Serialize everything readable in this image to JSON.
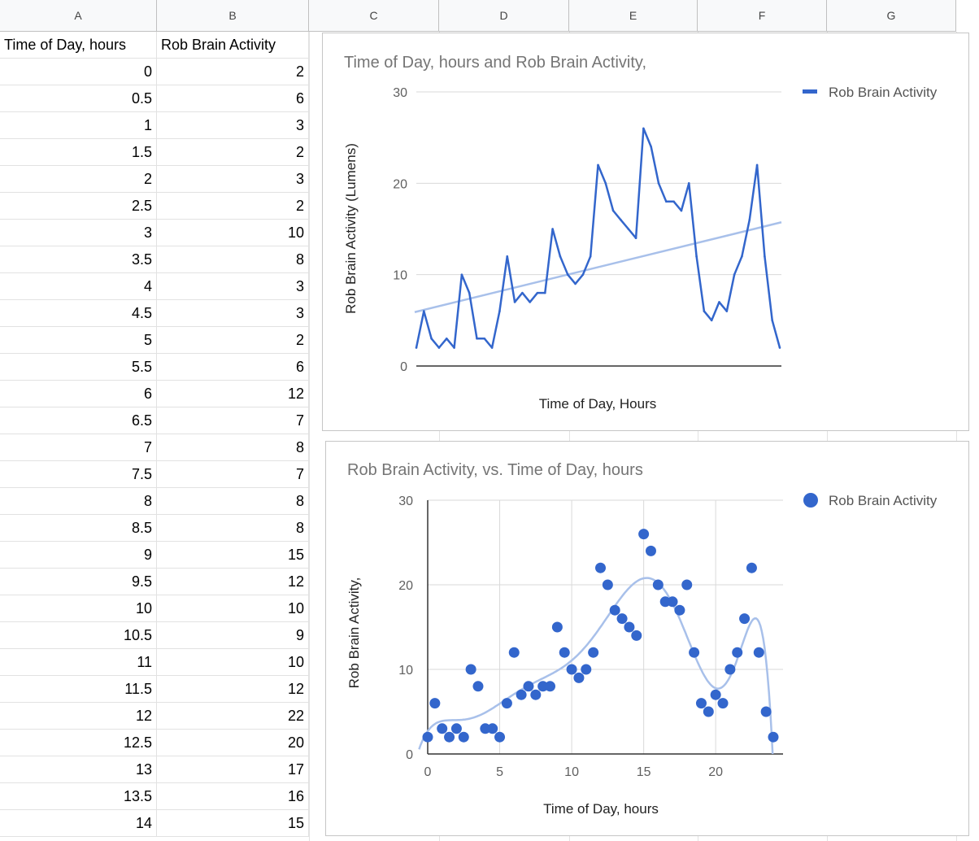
{
  "sheet": {
    "columns": [
      "A",
      "B",
      "C",
      "D",
      "E",
      "F",
      "G"
    ],
    "header": [
      "Time of Day, hours",
      "Rob Brain Activity"
    ],
    "rows": [
      [
        "0",
        "2"
      ],
      [
        "0.5",
        "6"
      ],
      [
        "1",
        "3"
      ],
      [
        "1.5",
        "2"
      ],
      [
        "2",
        "3"
      ],
      [
        "2.5",
        "2"
      ],
      [
        "3",
        "10"
      ],
      [
        "3.5",
        "8"
      ],
      [
        "4",
        "3"
      ],
      [
        "4.5",
        "3"
      ],
      [
        "5",
        "2"
      ],
      [
        "5.5",
        "6"
      ],
      [
        "6",
        "12"
      ],
      [
        "6.5",
        "7"
      ],
      [
        "7",
        "8"
      ],
      [
        "7.5",
        "7"
      ],
      [
        "8",
        "8"
      ],
      [
        "8.5",
        "8"
      ],
      [
        "9",
        "15"
      ],
      [
        "9.5",
        "12"
      ],
      [
        "10",
        "10"
      ],
      [
        "10.5",
        "9"
      ],
      [
        "11",
        "10"
      ],
      [
        "11.5",
        "12"
      ],
      [
        "12",
        "22"
      ],
      [
        "12.5",
        "20"
      ],
      [
        "13",
        "17"
      ],
      [
        "13.5",
        "16"
      ],
      [
        "14",
        "15"
      ]
    ]
  },
  "colors": {
    "series": "#3366cc",
    "trend": "#a8c0ea",
    "axis": "#333333",
    "grid": "#d9d9d9"
  },
  "chart_data": [
    {
      "type": "line",
      "title": "Time of Day, hours and Rob Brain Activity,",
      "xlabel": "Time of Day, Hours",
      "ylabel": "Rob Brain Activity (Lumens)",
      "ylim": [
        0,
        30
      ],
      "yticks": [
        0,
        10,
        20,
        30
      ],
      "grid": true,
      "legend": "top-right",
      "trendline": "linear",
      "x": [
        0,
        0.5,
        1,
        1.5,
        2,
        2.5,
        3,
        3.5,
        4,
        4.5,
        5,
        5.5,
        6,
        6.5,
        7,
        7.5,
        8,
        8.5,
        9,
        9.5,
        10,
        10.5,
        11,
        11.5,
        12,
        12.5,
        13,
        13.5,
        14,
        14.5,
        15,
        15.5,
        16,
        16.5,
        17,
        17.5,
        18,
        18.5,
        19,
        19.5,
        20,
        20.5,
        21,
        21.5,
        22,
        22.5,
        23,
        23.5,
        24
      ],
      "series": [
        {
          "name": "Rob Brain Activity",
          "values": [
            2,
            6,
            3,
            2,
            3,
            2,
            10,
            8,
            3,
            3,
            2,
            6,
            12,
            7,
            8,
            7,
            8,
            8,
            15,
            12,
            10,
            9,
            10,
            12,
            22,
            20,
            17,
            16,
            15,
            14,
            26,
            24,
            20,
            18,
            18,
            17,
            20,
            12,
            6,
            5,
            7,
            6,
            10,
            12,
            16,
            22,
            12,
            5,
            2
          ]
        }
      ]
    },
    {
      "type": "scatter",
      "title": "Rob Brain Activity,  vs. Time of Day, hours",
      "xlabel": "Time of Day, hours",
      "ylabel": "Rob Brain Activity,",
      "xlim": [
        0,
        24
      ],
      "ylim": [
        0,
        30
      ],
      "xticks": [
        0,
        5,
        10,
        15,
        20
      ],
      "yticks": [
        0,
        10,
        20,
        30
      ],
      "grid": true,
      "legend": "top-right",
      "trendline": "polynomial",
      "x": [
        0,
        0.5,
        1,
        1.5,
        2,
        2.5,
        3,
        3.5,
        4,
        4.5,
        5,
        5.5,
        6,
        6.5,
        7,
        7.5,
        8,
        8.5,
        9,
        9.5,
        10,
        10.5,
        11,
        11.5,
        12,
        12.5,
        13,
        13.5,
        14,
        14.5,
        15,
        15.5,
        16,
        16.5,
        17,
        17.5,
        18,
        18.5,
        19,
        19.5,
        20,
        20.5,
        21,
        21.5,
        22,
        22.5,
        23,
        23.5,
        24
      ],
      "series": [
        {
          "name": "Rob Brain Activity",
          "values": [
            2,
            6,
            3,
            2,
            3,
            2,
            10,
            8,
            3,
            3,
            2,
            6,
            12,
            7,
            8,
            7,
            8,
            8,
            15,
            12,
            10,
            9,
            10,
            12,
            22,
            20,
            17,
            16,
            15,
            14,
            26,
            24,
            20,
            18,
            18,
            17,
            20,
            12,
            6,
            5,
            7,
            6,
            10,
            12,
            16,
            22,
            12,
            5,
            2
          ]
        }
      ]
    }
  ]
}
